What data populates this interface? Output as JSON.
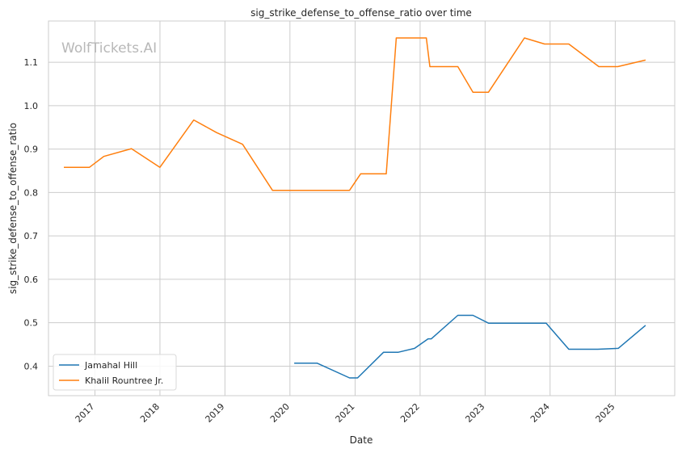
{
  "chart_data": {
    "type": "line",
    "title": "sig_strike_defense_to_offense_ratio over time",
    "xlabel": "Date",
    "ylabel": "sig_strike_defense_to_offense_ratio",
    "watermark": "WolfTickets.AI",
    "xlim": [
      "2016-04-15",
      "2025-12-01"
    ],
    "ylim": [
      0.332,
      1.195
    ],
    "x_ticks": [
      "2017",
      "2018",
      "2019",
      "2020",
      "2021",
      "2022",
      "2023",
      "2024",
      "2025"
    ],
    "y_ticks": [
      "0.4",
      "0.5",
      "0.6",
      "0.7",
      "0.8",
      "0.9",
      "1.0",
      "1.1"
    ],
    "grid": true,
    "legend_position": "lower-left",
    "series": [
      {
        "name": "Jamahal Hill",
        "color": "#1f77b4",
        "points": [
          [
            "2020-01-25",
            0.407
          ],
          [
            "2020-06-01",
            0.407
          ],
          [
            "2020-12-01",
            0.373
          ],
          [
            "2021-01-15",
            0.373
          ],
          [
            "2021-06-10",
            0.432
          ],
          [
            "2021-09-01",
            0.432
          ],
          [
            "2021-12-01",
            0.441
          ],
          [
            "2022-02-15",
            0.463
          ],
          [
            "2022-03-05",
            0.463
          ],
          [
            "2022-08-01",
            0.517
          ],
          [
            "2022-10-25",
            0.517
          ],
          [
            "2023-01-20",
            0.499
          ],
          [
            "2023-12-10",
            0.499
          ],
          [
            "2024-04-15",
            0.439
          ],
          [
            "2024-09-25",
            0.439
          ],
          [
            "2025-01-18",
            0.441
          ],
          [
            "2025-06-20",
            0.494
          ]
        ]
      },
      {
        "name": "Khalil Rountree Jr.",
        "color": "#ff7f0e",
        "points": [
          [
            "2016-07-10",
            0.858
          ],
          [
            "2016-12-01",
            0.858
          ],
          [
            "2017-02-20",
            0.883
          ],
          [
            "2017-07-25",
            0.901
          ],
          [
            "2018-01-01",
            0.858
          ],
          [
            "2018-07-10",
            0.967
          ],
          [
            "2018-11-15",
            0.938
          ],
          [
            "2019-04-10",
            0.911
          ],
          [
            "2019-09-25",
            0.805
          ],
          [
            "2020-12-01",
            0.805
          ],
          [
            "2021-02-01",
            0.843
          ],
          [
            "2021-06-25",
            0.843
          ],
          [
            "2021-08-20",
            1.156
          ],
          [
            "2022-02-05",
            1.156
          ],
          [
            "2022-02-25",
            1.09
          ],
          [
            "2022-08-01",
            1.09
          ],
          [
            "2022-10-25",
            1.031
          ],
          [
            "2023-01-20",
            1.031
          ],
          [
            "2023-08-10",
            1.156
          ],
          [
            "2023-12-01",
            1.142
          ],
          [
            "2024-04-15",
            1.142
          ],
          [
            "2024-10-01",
            1.09
          ],
          [
            "2025-01-15",
            1.09
          ],
          [
            "2025-06-20",
            1.105
          ]
        ]
      }
    ]
  }
}
